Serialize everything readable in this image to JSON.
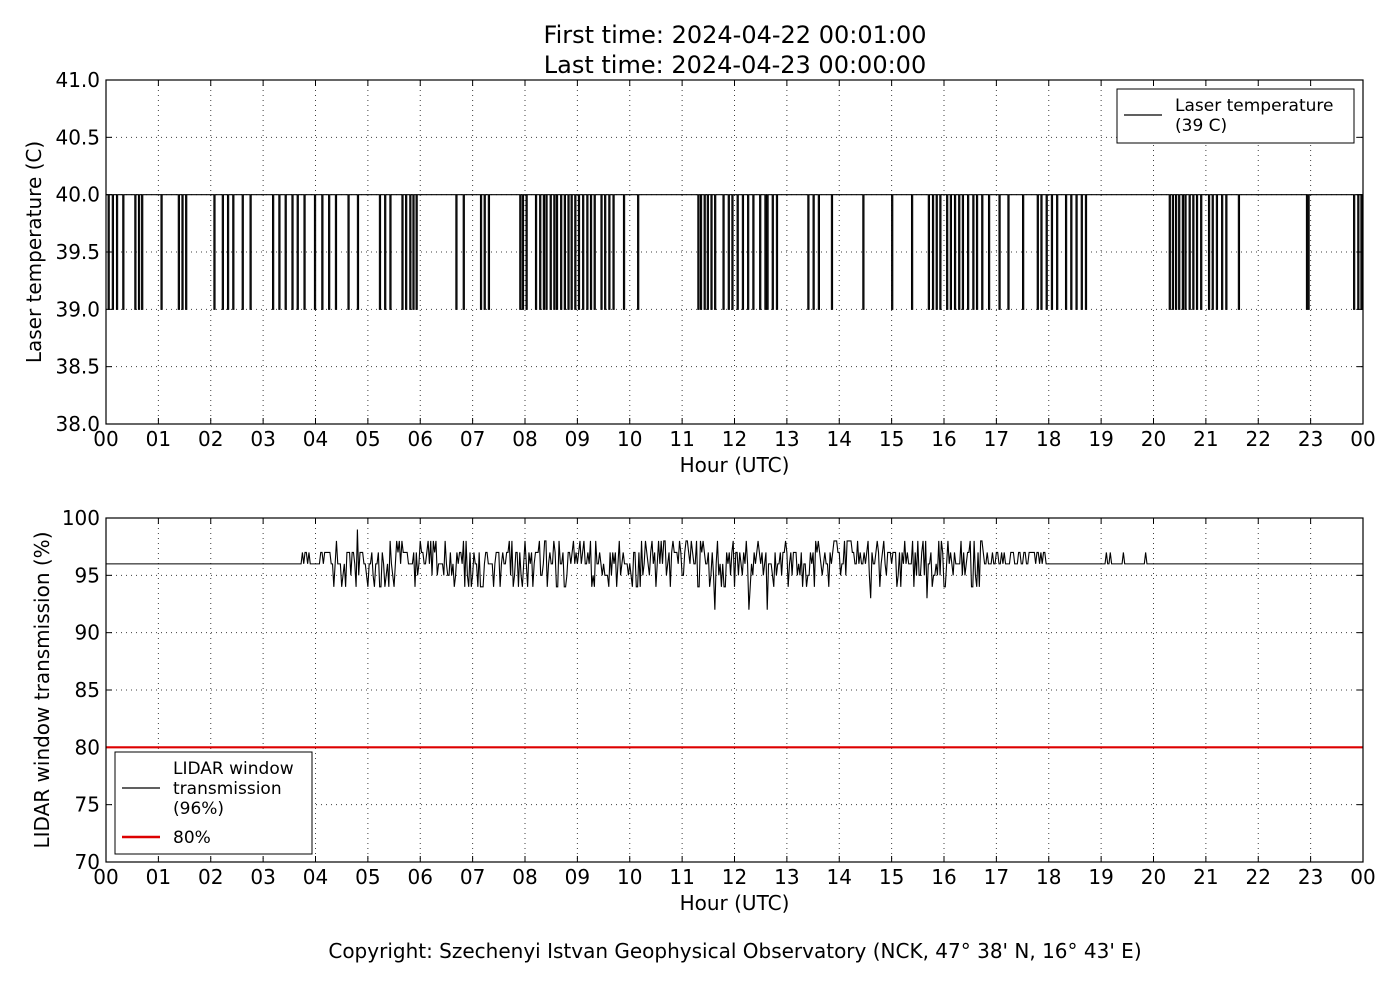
{
  "title_lines": [
    "First time: 2024-04-22 00:01:00",
    "Last time: 2024-04-23 00:00:00"
  ],
  "footer": "Copyright: Szechenyi Istvan Geophysical Observatory (NCK, 47° 38' N, 16° 43' E)",
  "colors": {
    "series": "#000000",
    "threshold": "#dd0000"
  },
  "chart_data": [
    {
      "type": "line",
      "xlabel": "Hour (UTC)",
      "ylabel": "Laser temperature (C)",
      "xlim": [
        0,
        24
      ],
      "ylim": [
        38.0,
        41.0
      ],
      "x_tick_labels": [
        "00",
        "01",
        "02",
        "03",
        "04",
        "05",
        "06",
        "07",
        "08",
        "09",
        "10",
        "11",
        "12",
        "13",
        "14",
        "15",
        "16",
        "17",
        "18",
        "19",
        "20",
        "21",
        "22",
        "23",
        "00"
      ],
      "y_ticks": [
        38.0,
        38.5,
        39.0,
        39.5,
        40.0,
        40.5,
        41.0
      ],
      "y_tick_labels": [
        "38.0",
        "38.5",
        "39.0",
        "39.5",
        "40.0",
        "40.5",
        "41.0"
      ],
      "grid": true,
      "legend_position": "top-right",
      "legend": [
        {
          "label_lines": [
            "Laser temperature",
            "(39 C)"
          ],
          "color": "#000000"
        }
      ],
      "series": [
        {
          "name": "Laser temperature (39 C)",
          "baseline": 40,
          "low_value": 39,
          "drop_times": [
            0.04,
            0.12,
            0.2,
            0.32,
            0.55,
            0.62,
            0.68,
            1.05,
            1.38,
            1.45,
            1.52,
            2.06,
            2.22,
            2.32,
            2.42,
            2.6,
            2.75,
            3.18,
            3.3,
            3.42,
            3.55,
            3.65,
            3.78,
            3.98,
            4.12,
            4.25,
            4.38,
            4.62,
            4.8,
            5.22,
            5.32,
            5.42,
            5.65,
            5.72,
            5.8,
            5.86,
            5.92,
            6.68,
            6.82,
            7.15,
            7.22,
            7.3,
            7.9,
            7.95,
            8.02,
            8.2,
            8.28,
            8.35,
            8.4,
            8.48,
            8.55,
            8.6,
            8.68,
            8.75,
            8.82,
            8.88,
            8.95,
            9.02,
            9.1,
            9.18,
            9.25,
            9.32,
            9.45,
            9.52,
            9.6,
            9.68,
            9.88,
            10.15,
            11.3,
            11.35,
            11.42,
            11.48,
            11.55,
            11.62,
            11.78,
            11.88,
            11.95,
            12.05,
            12.15,
            12.25,
            12.35,
            12.48,
            12.58,
            12.62,
            12.72,
            12.8,
            13.4,
            13.5,
            13.6,
            13.85,
            14.45,
            15.0,
            15.38,
            15.7,
            15.78,
            15.85,
            15.92,
            16.05,
            16.12,
            16.2,
            16.28,
            16.35,
            16.45,
            16.55,
            16.62,
            16.72,
            16.85,
            17.05,
            17.22,
            17.5,
            17.78,
            17.85,
            17.95,
            18.05,
            18.15,
            18.32,
            18.42,
            18.52,
            18.62,
            18.7,
            20.3,
            20.36,
            20.42,
            20.48,
            20.55,
            20.6,
            20.68,
            20.75,
            20.82,
            20.9,
            21.05,
            21.12,
            21.2,
            21.3,
            21.38,
            21.62,
            22.92,
            22.95,
            23.82,
            23.9,
            23.96
          ]
        }
      ]
    },
    {
      "type": "line",
      "xlabel": "Hour (UTC)",
      "ylabel": "LIDAR window transmission (%)",
      "xlim": [
        0,
        24
      ],
      "ylim": [
        70,
        100
      ],
      "x_tick_labels": [
        "00",
        "01",
        "02",
        "03",
        "04",
        "05",
        "06",
        "07",
        "08",
        "09",
        "10",
        "11",
        "12",
        "13",
        "14",
        "15",
        "16",
        "17",
        "18",
        "19",
        "20",
        "21",
        "22",
        "23",
        "00"
      ],
      "y_ticks": [
        70,
        75,
        80,
        85,
        90,
        95,
        100
      ],
      "y_tick_labels": [
        "70",
        "75",
        "80",
        "85",
        "90",
        "95",
        "100"
      ],
      "grid": true,
      "legend_position": "lower-left",
      "legend": [
        {
          "label_lines": [
            "LIDAR window",
            "transmission",
            "(96%)"
          ],
          "color": "#000000"
        },
        {
          "label_lines": [
            "80%"
          ],
          "color": "#dd0000"
        }
      ],
      "threshold": 80,
      "series": [
        {
          "name": "LIDAR window transmission (96%)",
          "baseline": 96,
          "noisy_range": [
            3.72,
            17.95
          ],
          "spikes": [
            [
              4.8,
              99
            ],
            [
              11.62,
              92
            ],
            [
              12.28,
              92
            ],
            [
              12.62,
              92
            ],
            [
              14.6,
              93
            ],
            [
              15.68,
              93
            ],
            [
              19.1,
              97
            ],
            [
              19.18,
              97
            ],
            [
              19.42,
              97
            ],
            [
              19.85,
              97
            ]
          ]
        }
      ]
    }
  ]
}
